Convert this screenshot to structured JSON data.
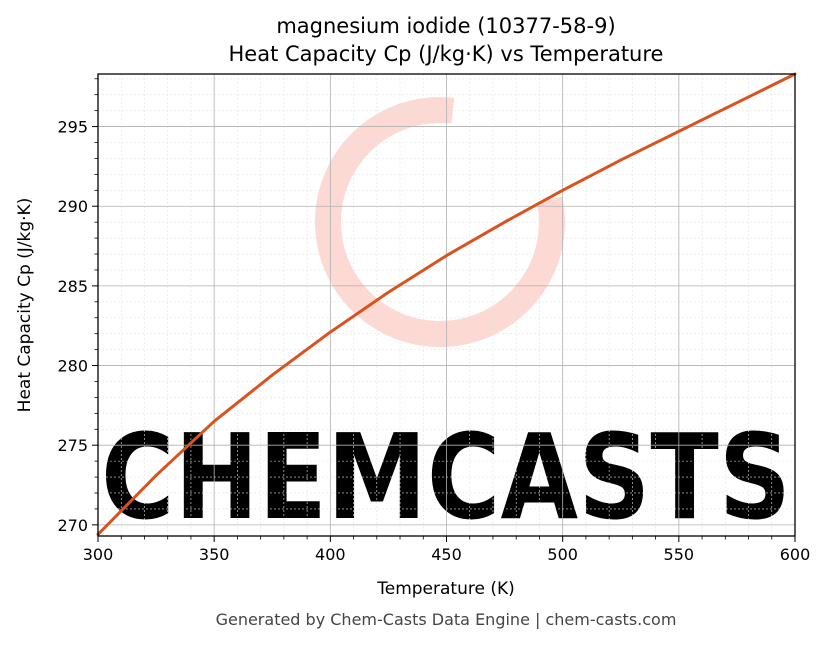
{
  "page": {
    "footer": "Generated by Chem-Casts Data Engine | chem-casts.com"
  },
  "watermark": {
    "text": "CHEMCASTS",
    "color": "#fdd9d4"
  },
  "chart_data": {
    "type": "line",
    "title_line1": "magnesium iodide (10377-58-9)",
    "title_line2": "Heat Capacity Cp (J/kg·K) vs Temperature",
    "xlabel": "Temperature (K)",
    "ylabel": "Heat Capacity Cp (J/kg·K)",
    "xlim": [
      300,
      600
    ],
    "ylim": [
      269.3,
      298.3
    ],
    "xticks": [
      300,
      350,
      400,
      450,
      500,
      550,
      600
    ],
    "yticks": [
      270,
      275,
      280,
      285,
      290,
      295
    ],
    "grid": true,
    "line_color": "#d9531e",
    "series": [
      {
        "x": [
          300,
          325,
          350,
          375,
          400,
          425,
          450,
          475,
          500,
          525,
          550,
          575,
          600
        ],
        "y": [
          269.4,
          273.1,
          276.5,
          279.4,
          282.1,
          284.6,
          286.9,
          289.0,
          291.0,
          292.9,
          294.7,
          296.5,
          298.3
        ]
      }
    ]
  }
}
